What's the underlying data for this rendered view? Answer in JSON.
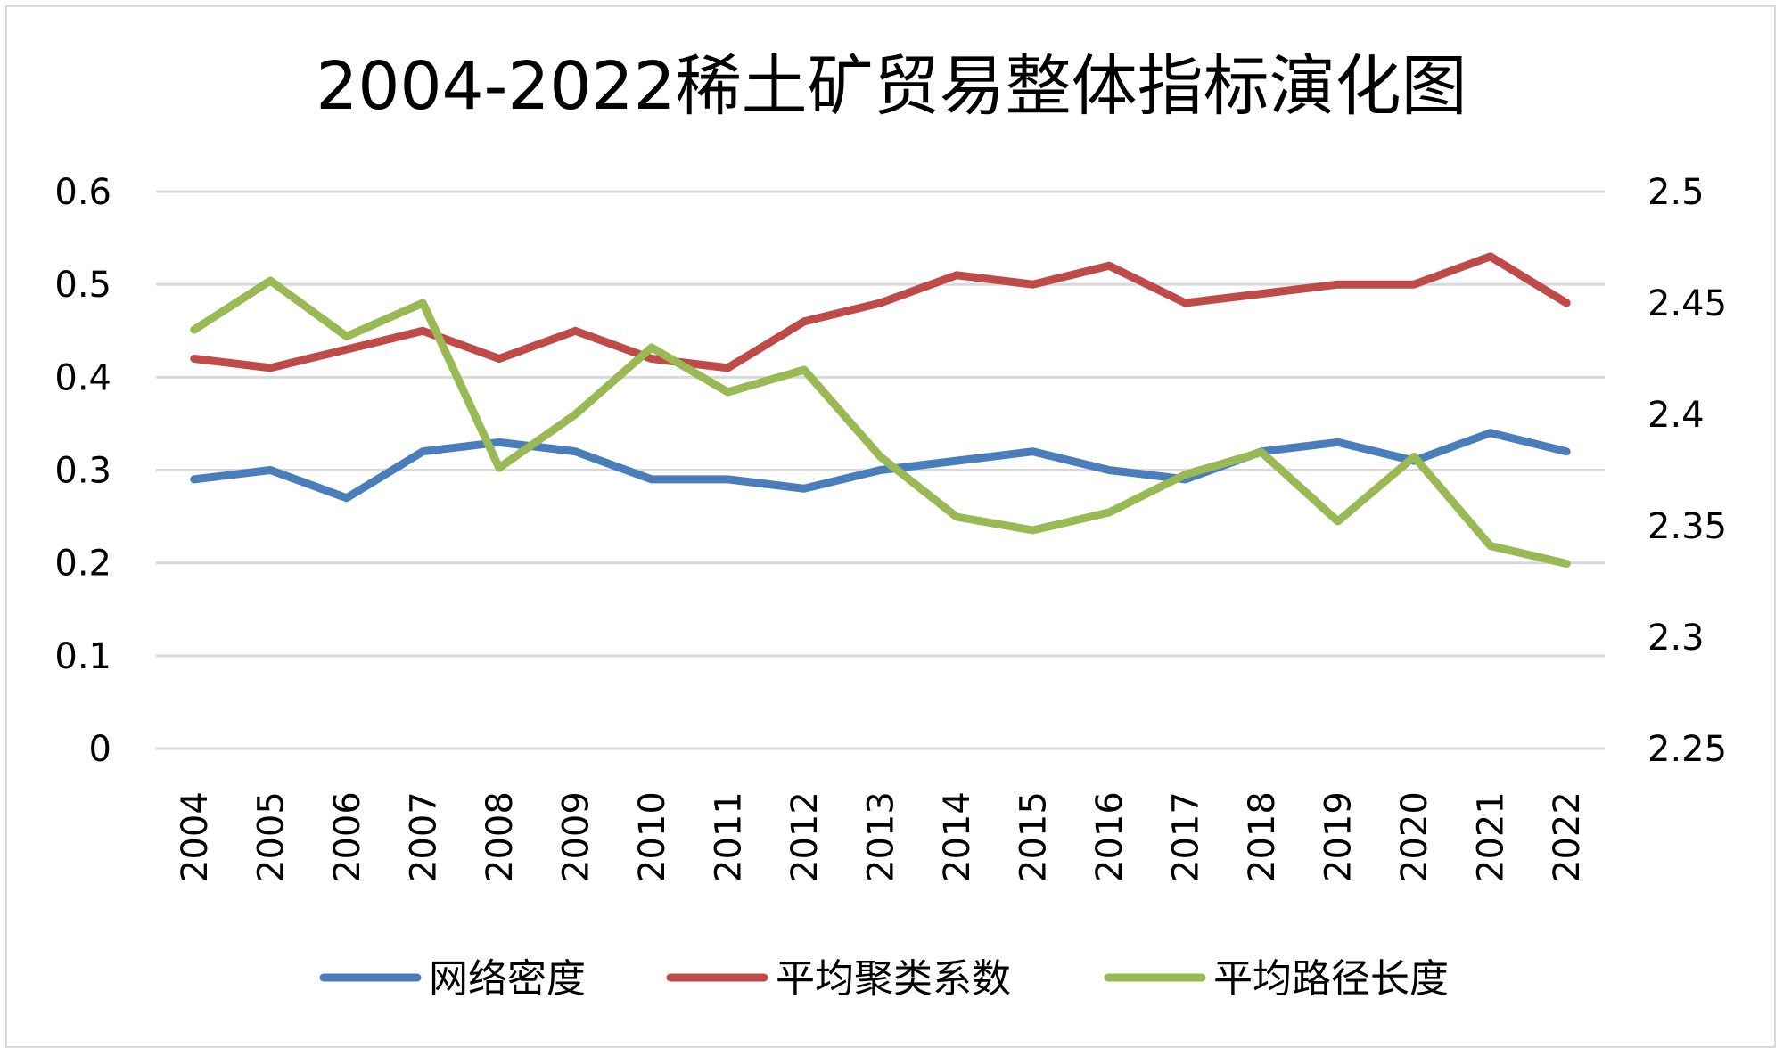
{
  "chart_data": {
    "type": "line",
    "title": "2004-2022稀土矿贸易整体指标演化图",
    "categories": [
      "2004",
      "2005",
      "2006",
      "2007",
      "2008",
      "2009",
      "2010",
      "2011",
      "2012",
      "2013",
      "2014",
      "2015",
      "2016",
      "2017",
      "2018",
      "2019",
      "2020",
      "2021",
      "2022"
    ],
    "left_axis": {
      "ylim": [
        0,
        0.6
      ],
      "ticks": [
        "0",
        "0.1",
        "0.2",
        "0.3",
        "0.4",
        "0.5",
        "0.6"
      ]
    },
    "right_axis": {
      "ylim": [
        2.25,
        2.5
      ],
      "ticks": [
        "2.25",
        "2.3",
        "2.35",
        "2.4",
        "2.45",
        "2.5"
      ]
    },
    "grid": true,
    "legend_position": "bottom",
    "series": [
      {
        "name": "网络密度",
        "axis": "left",
        "color": "#4a7ebb",
        "values": [
          0.29,
          0.3,
          0.27,
          0.32,
          0.33,
          0.32,
          0.29,
          0.29,
          0.28,
          0.3,
          0.31,
          0.32,
          0.3,
          0.29,
          0.32,
          0.33,
          0.31,
          0.34,
          0.32
        ]
      },
      {
        "name": "平均聚类系数",
        "axis": "left",
        "color": "#be4b48",
        "values": [
          0.42,
          0.41,
          0.43,
          0.45,
          0.42,
          0.45,
          0.42,
          0.41,
          0.46,
          0.48,
          0.51,
          0.5,
          0.52,
          0.48,
          0.49,
          0.5,
          0.5,
          0.53,
          0.48
        ]
      },
      {
        "name": "平均路径长度",
        "axis": "right",
        "color": "#98b954",
        "values": [
          2.438,
          2.46,
          2.435,
          2.45,
          2.376,
          2.4,
          2.43,
          2.41,
          2.42,
          2.381,
          2.354,
          2.348,
          2.356,
          2.373,
          2.383,
          2.352,
          2.381,
          2.341,
          2.333
        ]
      }
    ]
  }
}
